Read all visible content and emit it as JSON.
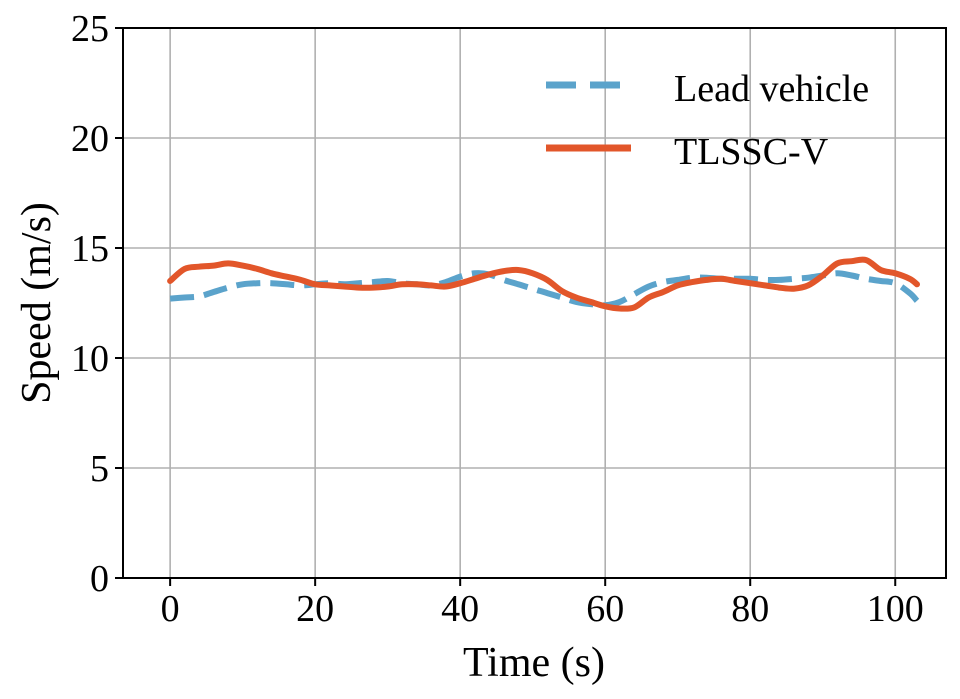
{
  "chart_data": {
    "type": "line",
    "title": "",
    "xlabel": "Time (s)",
    "ylabel": "Speed (m/s)",
    "xlim": [
      -6.5,
      107
    ],
    "ylim": [
      0,
      25
    ],
    "xticks": [
      0,
      20,
      40,
      60,
      80,
      100
    ],
    "yticks": [
      0,
      5,
      10,
      15,
      20,
      25
    ],
    "grid": true,
    "legend_position": "top-right",
    "series": [
      {
        "name": "Lead vehicle",
        "style": "dashed",
        "color": "#5ba3cb",
        "x": [
          0,
          2,
          4,
          6,
          8,
          10,
          12,
          14,
          16,
          18,
          20,
          22,
          24,
          26,
          28,
          30,
          32,
          34,
          36,
          38,
          40,
          42,
          44,
          46,
          48,
          50,
          52,
          54,
          56,
          58,
          60,
          62,
          64,
          66,
          68,
          70,
          72,
          74,
          76,
          78,
          80,
          82,
          84,
          86,
          88,
          90,
          92,
          94,
          96,
          98,
          100,
          102,
          103
        ],
        "y": [
          12.7,
          12.75,
          12.8,
          13.0,
          13.2,
          13.35,
          13.4,
          13.4,
          13.35,
          13.3,
          13.35,
          13.4,
          13.35,
          13.4,
          13.45,
          13.5,
          13.4,
          13.35,
          13.3,
          13.45,
          13.7,
          13.85,
          13.8,
          13.55,
          13.35,
          13.15,
          12.95,
          12.75,
          12.55,
          12.45,
          12.4,
          12.55,
          12.9,
          13.25,
          13.45,
          13.55,
          13.65,
          13.65,
          13.6,
          13.6,
          13.6,
          13.55,
          13.55,
          13.6,
          13.65,
          13.75,
          13.85,
          13.75,
          13.6,
          13.5,
          13.4,
          12.95,
          12.6
        ]
      },
      {
        "name": "TLSSC-V",
        "style": "solid",
        "color": "#e2562a",
        "x": [
          0,
          2,
          4,
          6,
          8,
          10,
          12,
          14,
          16,
          18,
          20,
          22,
          24,
          26,
          28,
          30,
          32,
          34,
          36,
          38,
          40,
          42,
          44,
          46,
          48,
          50,
          52,
          54,
          56,
          58,
          60,
          62,
          64,
          66,
          68,
          70,
          72,
          74,
          76,
          78,
          80,
          82,
          84,
          86,
          88,
          90,
          92,
          94,
          96,
          98,
          100,
          102,
          103
        ],
        "y": [
          13.5,
          14.05,
          14.15,
          14.2,
          14.3,
          14.2,
          14.05,
          13.85,
          13.7,
          13.55,
          13.35,
          13.3,
          13.25,
          13.2,
          13.2,
          13.25,
          13.35,
          13.35,
          13.3,
          13.25,
          13.4,
          13.6,
          13.8,
          13.95,
          14.0,
          13.85,
          13.55,
          13.05,
          12.75,
          12.55,
          12.35,
          12.25,
          12.3,
          12.75,
          13.0,
          13.3,
          13.45,
          13.55,
          13.6,
          13.5,
          13.4,
          13.3,
          13.2,
          13.15,
          13.3,
          13.75,
          14.3,
          14.4,
          14.45,
          14.0,
          13.85,
          13.6,
          13.35
        ]
      }
    ]
  }
}
